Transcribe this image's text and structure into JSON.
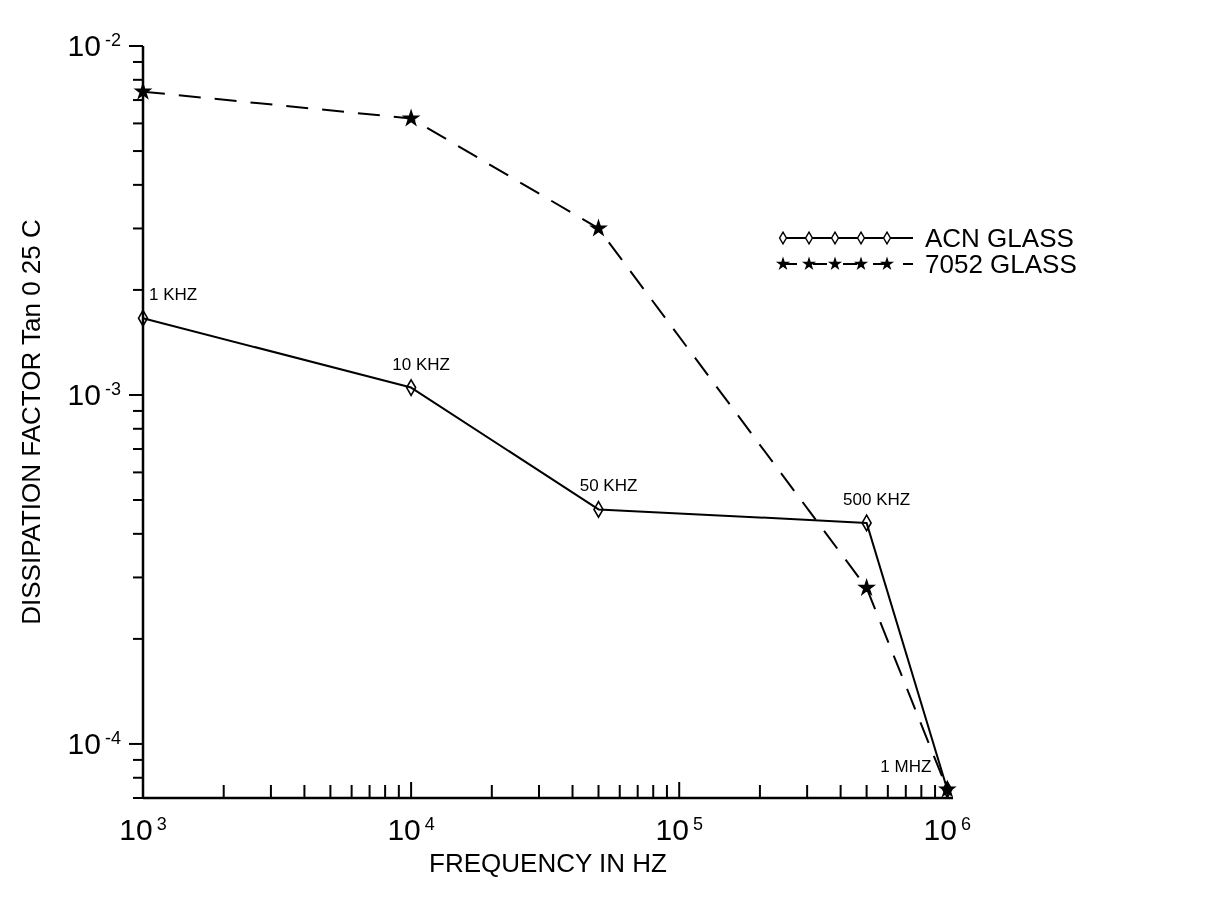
{
  "chart_data": {
    "type": "line",
    "xlabel": "FREQUENCY IN HZ",
    "ylabel": "DISSIPATION FACTOR Tan 0 25 C",
    "log": "xy",
    "legend": "top right",
    "grid": false,
    "x": [
      1000,
      10000,
      50000,
      500000,
      1000000
    ],
    "xlim": [
      1000,
      1050000
    ],
    "xticks": [
      {
        "value": 1000,
        "label": "10$^{3}$"
      },
      {
        "value": 2000,
        "label": null
      },
      {
        "value": 3000,
        "label": null
      },
      {
        "value": 4000,
        "label": null
      },
      {
        "value": 5000,
        "label": null
      },
      {
        "value": 6000,
        "label": null
      },
      {
        "value": 7000,
        "label": null
      },
      {
        "value": 8000,
        "label": null
      },
      {
        "value": 9000,
        "label": null
      },
      {
        "value": 10000,
        "label": "10$^{4}$"
      },
      {
        "value": 20000,
        "label": null
      },
      {
        "value": 30000,
        "label": null
      },
      {
        "value": 40000,
        "label": null
      },
      {
        "value": 50000,
        "label": null
      },
      {
        "value": 60000,
        "label": null
      },
      {
        "value": 70000,
        "label": null
      },
      {
        "value": 80000,
        "label": null
      },
      {
        "value": 90000,
        "label": null
      },
      {
        "value": 100000,
        "label": "10$^{5}$"
      },
      {
        "value": 200000,
        "label": null
      },
      {
        "value": 300000,
        "label": null
      },
      {
        "value": 400000,
        "label": null
      },
      {
        "value": 500000,
        "label": null
      },
      {
        "value": 600000,
        "label": null
      },
      {
        "value": 700000,
        "label": null
      },
      {
        "value": 800000,
        "label": null
      },
      {
        "value": 900000,
        "label": null
      },
      {
        "value": 1000000,
        "label": "10$^{6}$"
      }
    ],
    "ylim": [
      7e-05,
      0.01
    ],
    "yticks": [
      {
        "value": 7e-05,
        "label": null
      },
      {
        "value": 8e-05,
        "label": null
      },
      {
        "value": 9e-05,
        "label": null
      },
      {
        "value": 0.0001,
        "label": "10$^{-4}$"
      },
      {
        "value": 0.0002,
        "label": null
      },
      {
        "value": 0.0003,
        "label": null
      },
      {
        "value": 0.0004,
        "label": null
      },
      {
        "value": 0.0005,
        "label": null
      },
      {
        "value": 0.0006,
        "label": null
      },
      {
        "value": 0.0007,
        "label": null
      },
      {
        "value": 0.0008,
        "label": null
      },
      {
        "value": 0.0009,
        "label": null
      },
      {
        "value": 0.001,
        "label": "10$^{-3}$"
      },
      {
        "value": 0.002,
        "label": null
      },
      {
        "value": 0.003,
        "label": null
      },
      {
        "value": 0.004,
        "label": null
      },
      {
        "value": 0.005,
        "label": null
      },
      {
        "value": 0.006,
        "label": null
      },
      {
        "value": 0.007,
        "label": null
      },
      {
        "value": 0.008,
        "label": null
      },
      {
        "value": 0.009,
        "label": null
      },
      {
        "value": 0.01,
        "label": "10$^{-2}$"
      }
    ],
    "series": [
      {
        "name": "ACN GLASS",
        "color": "#000000",
        "marker": "diamond",
        "line_style": "solid",
        "values": [
          0.00166,
          0.00105,
          0.00047,
          0.00043,
          7.4e-05
        ]
      },
      {
        "name": "7052 GLASS",
        "color": "#000000",
        "marker": "star",
        "line_style": "dashed",
        "values": [
          0.0074,
          0.0062,
          0.003,
          0.00028,
          7.4e-05
        ]
      }
    ],
    "annotations": [
      {
        "text": "1 KHZ",
        "x": 1000,
        "y": 0.00166
      },
      {
        "text": "10 KHZ",
        "x": 10000,
        "y": 0.00105
      },
      {
        "text": "50 KHZ",
        "x": 50000,
        "y": 0.00047
      },
      {
        "text": "500 KHZ",
        "x": 500000,
        "y": 0.00043
      },
      {
        "text": "1 MHZ",
        "x": 1000000,
        "y": 7.4e-05
      }
    ]
  }
}
